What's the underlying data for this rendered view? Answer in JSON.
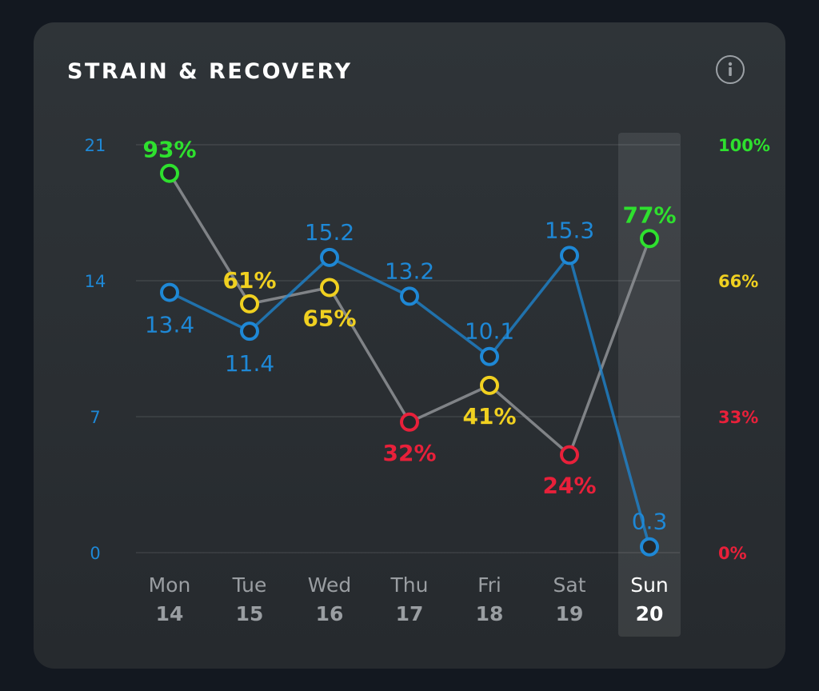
{
  "card": {
    "title": "STRAIN & RECOVERY",
    "info_icon": "info-icon"
  },
  "colors": {
    "strain": "#1e88d6",
    "recovery_high": "#2ee02e",
    "recovery_mid": "#f0d020",
    "recovery_low": "#e8203a",
    "recovery_line": "#8a8d90",
    "day_label": "#9a9ea2",
    "selected_day_label": "#ffffff"
  },
  "chart_data": {
    "type": "line",
    "categories": [
      {
        "day": "Mon",
        "date": "14"
      },
      {
        "day": "Tue",
        "date": "15"
      },
      {
        "day": "Wed",
        "date": "16"
      },
      {
        "day": "Thu",
        "date": "17"
      },
      {
        "day": "Fri",
        "date": "18"
      },
      {
        "day": "Sat",
        "date": "19"
      },
      {
        "day": "Sun",
        "date": "20"
      }
    ],
    "selected_index": 6,
    "left_axis": {
      "ticks": [
        "0",
        "7",
        "14",
        "21"
      ],
      "ylim": [
        0,
        21
      ]
    },
    "right_axis": {
      "ticks": [
        "0%",
        "33%",
        "66%",
        "100%"
      ],
      "ylim": [
        0,
        100
      ]
    },
    "series": [
      {
        "key": "strain",
        "axis": "left",
        "values": [
          13.4,
          11.4,
          15.2,
          13.2,
          10.1,
          15.3,
          0.3
        ],
        "labels": [
          "13.4",
          "11.4",
          "15.2",
          "13.2",
          "10.1",
          "15.3",
          "0.3"
        ],
        "label_position": [
          "below",
          "below",
          "above",
          "above",
          "above",
          "above",
          "above"
        ]
      },
      {
        "key": "recovery",
        "axis": "right",
        "values": [
          93,
          61,
          65,
          32,
          41,
          24,
          77
        ],
        "labels": [
          "93%",
          "61%",
          "65%",
          "32%",
          "41%",
          "24%",
          "77%"
        ],
        "label_position": [
          "above",
          "above",
          "below",
          "below",
          "below",
          "below",
          "above"
        ]
      }
    ]
  }
}
